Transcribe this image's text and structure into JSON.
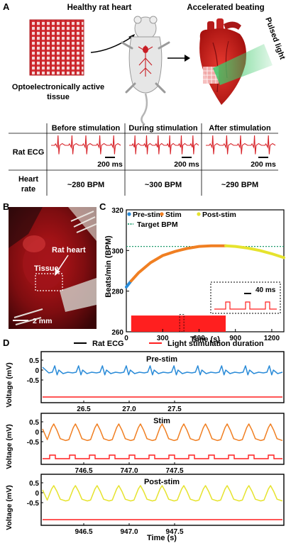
{
  "panels": {
    "a": "A",
    "b": "B",
    "c": "C",
    "d": "D"
  },
  "panel_a": {
    "tissue_title": "Healthy rat heart",
    "tissue_caption_l1": "Optoelectronically active",
    "tissue_caption_l2": "tissue",
    "heart_title": "Accelerated beating",
    "light_label": "Pulsed light",
    "table": {
      "col_headers": [
        "Before stimulation",
        "During stimulation",
        "After stimulation"
      ],
      "row_ecg": "Rat ECG",
      "row_hr_l1": "Heart",
      "row_hr_l2": "rate",
      "scale": "200 ms",
      "rates": [
        "~280 BPM",
        "~300 BPM",
        "~290 BPM"
      ]
    }
  },
  "panel_b": {
    "heart_label": "Rat heart",
    "tissue_label": "Tissue",
    "scale": "2 mm"
  },
  "chart_data": [
    {
      "type": "line",
      "panel": "C",
      "xlabel": "Time (s)",
      "ylabel": "Beats/min (BPM)",
      "xlim": [
        0,
        1300
      ],
      "ylim": [
        260,
        320
      ],
      "xticks": [
        0,
        300,
        600,
        900,
        1200
      ],
      "yticks": [
        260,
        280,
        300,
        320
      ],
      "target_bpm": 302,
      "target_label": "Target BPM",
      "legend": [
        "Pre-stim",
        "Stim",
        "Post-stim"
      ],
      "series": [
        {
          "name": "Pre-stim",
          "color": "#2a8bd8",
          "x": [
            0,
            40
          ],
          "y": [
            282,
            285
          ]
        },
        {
          "name": "Stim",
          "color": "#f07f22",
          "x": [
            40,
            100,
            200,
            300,
            400,
            500,
            600,
            700,
            820
          ],
          "y": [
            285,
            289,
            294,
            297.5,
            299.5,
            301,
            302,
            302.3,
            302.3
          ]
        },
        {
          "name": "Post-stim",
          "color": "#e6e32e",
          "x": [
            820,
            900,
            1000,
            1100,
            1200,
            1300
          ],
          "y": [
            302.3,
            302,
            301.2,
            300,
            298.4,
            296.5
          ]
        }
      ],
      "stim_bar": {
        "x": [
          40,
          820
        ],
        "color": "#ff1f1f"
      },
      "inset": {
        "scale": "40 ms",
        "pulses": 3
      }
    },
    {
      "type": "line",
      "panel": "D-pre",
      "title": "Pre-stim",
      "ylabel": "Voltage (mV)",
      "xticks": [
        "26.5",
        "27.0",
        "27.5"
      ],
      "yticks": [
        "0.5",
        "0",
        "-0.5"
      ],
      "ecg_color": "#2a8bd8",
      "stim": "off"
    },
    {
      "type": "line",
      "panel": "D-stim",
      "title": "Stim",
      "ylabel": "Voltage (mV)",
      "xticks": [
        "746.5",
        "747.0",
        "747.5"
      ],
      "yticks": [
        "0.5",
        "0",
        "-0.5"
      ],
      "ecg_color": "#f07f22",
      "stim": "pulsed"
    },
    {
      "type": "line",
      "panel": "D-post",
      "title": "Post-stim",
      "ylabel": "Voltage (mV)",
      "xlabel": "Time (s)",
      "xticks": [
        "946.5",
        "947.0",
        "947.5"
      ],
      "yticks": [
        "0.5",
        "0",
        "-0.5"
      ],
      "ecg_color": "#e6e32e",
      "stim": "off"
    }
  ],
  "legend_d": {
    "ecg": "Rat ECG",
    "light": "Light stimulation duration",
    "ecg_color": "#000000",
    "light_color": "#ff1f1f"
  }
}
